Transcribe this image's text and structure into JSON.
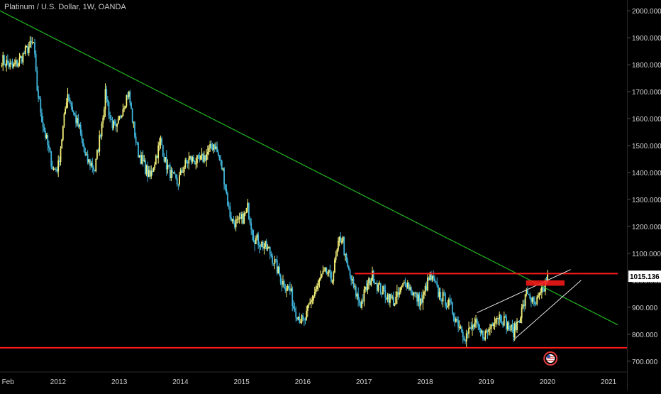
{
  "chart_title": "Platinum / U.S. Dollar, 1W, OANDA",
  "colors": {
    "background": "#000000",
    "up_candle": "#f4f07a",
    "down_candle": "#3fb6dc",
    "trendline_green": "#22b422",
    "resistance_red": "#ff1a1a",
    "wedge_white": "#e8e8e8",
    "price_label_bg": "#ffffff",
    "axis_text": "#d0d0d0"
  },
  "chart_data": {
    "type": "candlestick",
    "symbol": "Platinum / U.S. Dollar",
    "interval": "1W",
    "source": "OANDA",
    "x_tick_labels": [
      "Feb",
      "2012",
      "2013",
      "2014",
      "2015",
      "2016",
      "2017",
      "2018",
      "2019",
      "2020",
      "2021"
    ],
    "x_tick_dates": [
      2011.08,
      2012.0,
      2013.0,
      2014.0,
      2015.0,
      2016.0,
      2017.0,
      2018.0,
      2019.0,
      2020.0,
      2021.0
    ],
    "y_tick_labels": [
      "2000.000",
      "1900.000",
      "1800.000",
      "1700.000",
      "1600.000",
      "1500.000",
      "1400.000",
      "1300.000",
      "1200.000",
      "1100.000",
      "1000.000",
      "900.000",
      "800.000",
      "700.000"
    ],
    "y_tick_values": [
      2000,
      1900,
      1800,
      1700,
      1600,
      1500,
      1400,
      1300,
      1200,
      1100,
      1000,
      900,
      800,
      700
    ],
    "xlim": [
      2011.05,
      2021.3
    ],
    "ylim": [
      660,
      2040
    ],
    "current_price": "1015.136",
    "current_price_value": 1015.136,
    "price_path": [
      [
        2011.08,
        1820
      ],
      [
        2011.25,
        1790
      ],
      [
        2011.35,
        1810
      ],
      [
        2011.5,
        1860
      ],
      [
        2011.6,
        1880
      ],
      [
        2011.65,
        1720
      ],
      [
        2011.75,
        1580
      ],
      [
        2011.85,
        1480
      ],
      [
        2011.92,
        1410
      ],
      [
        2012.0,
        1420
      ],
      [
        2012.1,
        1600
      ],
      [
        2012.15,
        1700
      ],
      [
        2012.25,
        1620
      ],
      [
        2012.35,
        1560
      ],
      [
        2012.45,
        1450
      ],
      [
        2012.55,
        1430
      ],
      [
        2012.6,
        1410
      ],
      [
        2012.7,
        1560
      ],
      [
        2012.78,
        1700
      ],
      [
        2012.85,
        1600
      ],
      [
        2012.95,
        1550
      ],
      [
        2013.05,
        1640
      ],
      [
        2013.15,
        1700
      ],
      [
        2013.22,
        1590
      ],
      [
        2013.3,
        1480
      ],
      [
        2013.4,
        1430
      ],
      [
        2013.5,
        1380
      ],
      [
        2013.6,
        1460
      ],
      [
        2013.68,
        1520
      ],
      [
        2013.75,
        1440
      ],
      [
        2013.85,
        1390
      ],
      [
        2013.95,
        1360
      ],
      [
        2014.05,
        1420
      ],
      [
        2014.15,
        1450
      ],
      [
        2014.3,
        1440
      ],
      [
        2014.4,
        1460
      ],
      [
        2014.5,
        1490
      ],
      [
        2014.55,
        1510
      ],
      [
        2014.62,
        1460
      ],
      [
        2014.7,
        1400
      ],
      [
        2014.8,
        1250
      ],
      [
        2014.85,
        1220
      ],
      [
        2014.95,
        1210
      ],
      [
        2015.05,
        1240
      ],
      [
        2015.1,
        1270
      ],
      [
        2015.2,
        1160
      ],
      [
        2015.3,
        1140
      ],
      [
        2015.45,
        1110
      ],
      [
        2015.55,
        1060
      ],
      [
        2015.65,
        1000
      ],
      [
        2015.72,
        980
      ],
      [
        2015.8,
        960
      ],
      [
        2015.85,
        900
      ],
      [
        2015.95,
        860
      ],
      [
        2016.02,
        840
      ],
      [
        2016.1,
        900
      ],
      [
        2016.2,
        960
      ],
      [
        2016.3,
        1010
      ],
      [
        2016.4,
        1030
      ],
      [
        2016.47,
        1000
      ],
      [
        2016.55,
        1090
      ],
      [
        2016.6,
        1150
      ],
      [
        2016.65,
        1160
      ],
      [
        2016.7,
        1070
      ],
      [
        2016.78,
        1010
      ],
      [
        2016.85,
        960
      ],
      [
        2016.95,
        910
      ],
      [
        2017.02,
        960
      ],
      [
        2017.1,
        1000
      ],
      [
        2017.15,
        1020
      ],
      [
        2017.22,
        980
      ],
      [
        2017.3,
        960
      ],
      [
        2017.4,
        940
      ],
      [
        2017.5,
        920
      ],
      [
        2017.6,
        960
      ],
      [
        2017.68,
        1000
      ],
      [
        2017.78,
        960
      ],
      [
        2017.88,
        930
      ],
      [
        2017.95,
        920
      ],
      [
        2018.02,
        980
      ],
      [
        2018.08,
        1010
      ],
      [
        2018.15,
        990
      ],
      [
        2018.22,
        950
      ],
      [
        2018.32,
        930
      ],
      [
        2018.42,
        900
      ],
      [
        2018.52,
        850
      ],
      [
        2018.6,
        820
      ],
      [
        2018.65,
        790
      ],
      [
        2018.72,
        810
      ],
      [
        2018.82,
        840
      ],
      [
        2018.9,
        800
      ],
      [
        2018.98,
        800
      ],
      [
        2019.05,
        820
      ],
      [
        2019.12,
        860
      ],
      [
        2019.2,
        870
      ],
      [
        2019.3,
        850
      ],
      [
        2019.38,
        820
      ],
      [
        2019.45,
        810
      ],
      [
        2019.52,
        850
      ],
      [
        2019.6,
        900
      ],
      [
        2019.67,
        960
      ],
      [
        2019.72,
        940
      ],
      [
        2019.78,
        900
      ],
      [
        2019.85,
        930
      ],
      [
        2019.9,
        950
      ],
      [
        2019.95,
        970
      ],
      [
        2019.98,
        1000
      ],
      [
        2020.02,
        1015
      ]
    ],
    "annotations": {
      "descending_trendline": {
        "from": [
          2011.05,
          2000
        ],
        "to": [
          2021.15,
          835
        ]
      },
      "resistance_line": {
        "from": [
          2016.85,
          1025
        ],
        "to": [
          2021.15,
          1025
        ]
      },
      "resistance_zone": {
        "x": [
          2019.65,
          2020.28
        ],
        "y": [
          980,
          1000
        ]
      },
      "support_line": {
        "from": [
          2011.05,
          750
        ],
        "to": [
          2021.3,
          750
        ]
      },
      "wedge_upper": {
        "from": [
          2018.85,
          880
        ],
        "to": [
          2020.38,
          1040
        ]
      },
      "wedge_lower": {
        "from": [
          2019.45,
          780
        ],
        "to": [
          2020.55,
          1000
        ]
      }
    },
    "event_marker": {
      "x": 2020.05,
      "y": 710,
      "icon": "us-flag-icon"
    }
  }
}
